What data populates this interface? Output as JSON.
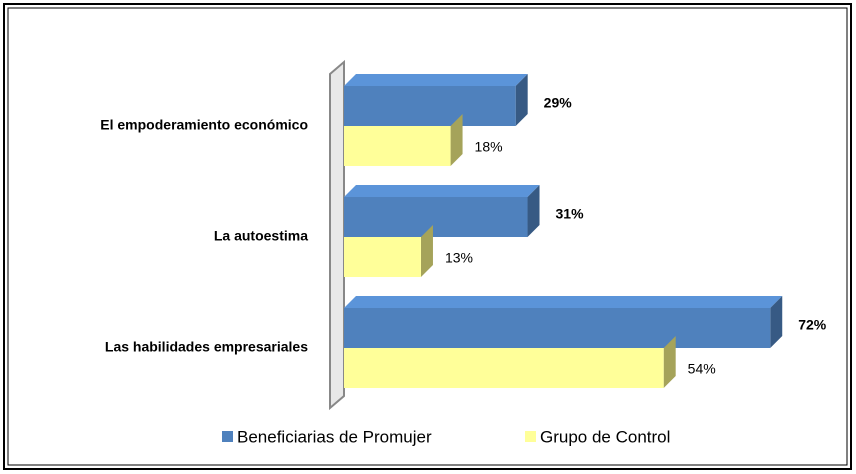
{
  "chart_data": {
    "type": "bar3d-horizontal",
    "categories": [
      "El empoderamiento económico",
      "La autoestima",
      "Las habilidades empresariales"
    ],
    "series": [
      {
        "name": "Beneficiarias de Promujer",
        "color": "#4f81bd",
        "values": [
          29,
          31,
          72
        ],
        "value_labels": [
          "29%",
          "31%",
          "72%"
        ]
      },
      {
        "name": "Grupo de Control",
        "color": "#ffff99",
        "values": [
          18,
          13,
          54
        ],
        "value_labels": [
          "18%",
          "13%",
          "54%"
        ]
      }
    ],
    "legend": "bottom"
  }
}
